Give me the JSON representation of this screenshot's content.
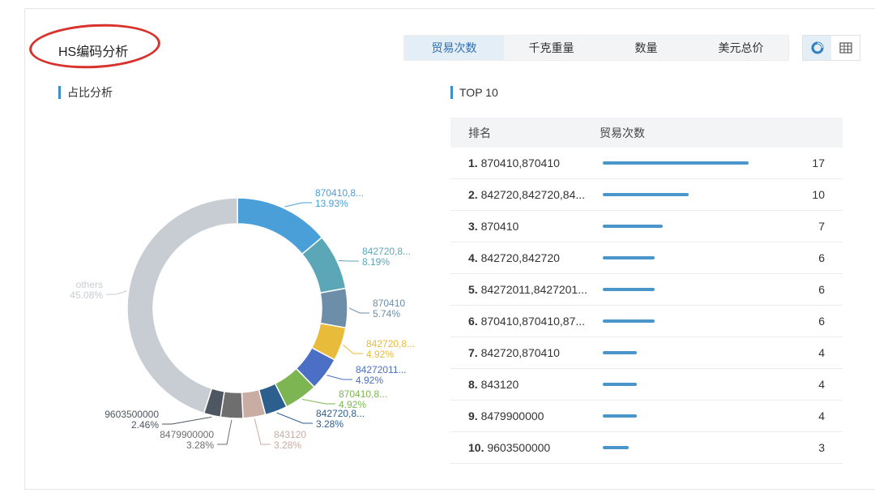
{
  "header": {
    "title": "HS编码分析"
  },
  "metric_tabs": [
    {
      "label": "贸易次数",
      "active": true
    },
    {
      "label": "千克重量",
      "active": false
    },
    {
      "label": "数量",
      "active": false
    },
    {
      "label": "美元总价",
      "active": false
    }
  ],
  "view_toggle": {
    "active": "donut-chart-icon",
    "icons": [
      "donut-chart-icon",
      "table-icon"
    ]
  },
  "left_section": {
    "title": "占比分析"
  },
  "right_section": {
    "title": "TOP 10"
  },
  "table": {
    "col_rank": "排名",
    "col_count": "贸易次数",
    "rows": [
      {
        "rank": "1.",
        "name": "870410,870410",
        "value": "17"
      },
      {
        "rank": "2.",
        "name": "842720,842720,84...",
        "value": "10"
      },
      {
        "rank": "3.",
        "name": "870410",
        "value": "7"
      },
      {
        "rank": "4.",
        "name": "842720,842720",
        "value": "6"
      },
      {
        "rank": "5.",
        "name": "84272011,8427201...",
        "value": "6"
      },
      {
        "rank": "6.",
        "name": "870410,870410,87...",
        "value": "6"
      },
      {
        "rank": "7.",
        "name": "842720,870410",
        "value": "4"
      },
      {
        "rank": "8.",
        "name": "843120",
        "value": "4"
      },
      {
        "rank": "9.",
        "name": "8479900000",
        "value": "4"
      },
      {
        "rank": "10.",
        "name": "9603500000",
        "value": "3"
      }
    ],
    "max_value": 17
  },
  "chart_data": {
    "type": "pie",
    "variant": "donut",
    "slices": [
      {
        "label": "870410,8...",
        "percent": "13.93%",
        "value": 13.93,
        "color": "#4a9fd8"
      },
      {
        "label": "842720,8...",
        "percent": "8.19%",
        "value": 8.19,
        "color": "#5ba7b8"
      },
      {
        "label": "870410",
        "percent": "5.74%",
        "value": 5.74,
        "color": "#6d8ea8"
      },
      {
        "label": "842720,8...",
        "percent": "4.92%",
        "value": 4.92,
        "color": "#e8bb3a"
      },
      {
        "label": "84272011...",
        "percent": "4.92%",
        "value": 4.92,
        "color": "#4a6fc4"
      },
      {
        "label": "870410,8...",
        "percent": "4.92%",
        "value": 4.92,
        "color": "#7db552"
      },
      {
        "label": "842720,8...",
        "percent": "3.28%",
        "value": 3.28,
        "color": "#2d5f8e"
      },
      {
        "label": "843120",
        "percent": "3.28%",
        "value": 3.28,
        "color": "#c9aca2"
      },
      {
        "label": "8479900000",
        "percent": "3.28%",
        "value": 3.28,
        "color": "#6e6e6e"
      },
      {
        "label": "9603500000",
        "percent": "2.46%",
        "value": 2.46,
        "color": "#4d5661"
      },
      {
        "label": "others",
        "percent": "45.08%",
        "value": 45.08,
        "color": "#c8cdd3"
      }
    ]
  }
}
